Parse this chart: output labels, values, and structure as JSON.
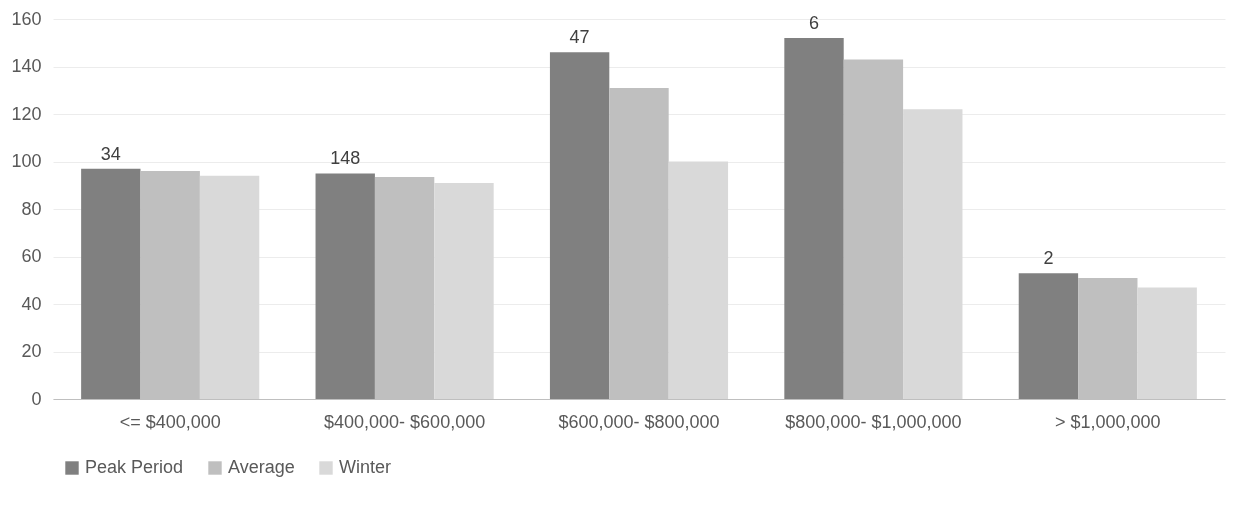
{
  "chart_data": {
    "type": "bar",
    "categories": [
      "<= $400,000",
      "$400,000- $600,000",
      "$600,000- $800,000",
      "$800,000- $1,000,000",
      "> $1,000,000"
    ],
    "series": [
      {
        "name": "Peak Period",
        "color": "#808080",
        "values": [
          97,
          95,
          146,
          152,
          53
        ]
      },
      {
        "name": "Average",
        "color": "#bfbfbf",
        "values": [
          96,
          93.5,
          131,
          143,
          51
        ]
      },
      {
        "name": "Winter",
        "color": "#d9d9d9",
        "values": [
          94,
          91,
          100,
          122,
          47
        ]
      }
    ],
    "ylim": [
      0,
      160
    ],
    "yticks": [
      0,
      20,
      40,
      60,
      80,
      100,
      120,
      140,
      160
    ],
    "grid": "y",
    "legend": "bottom",
    "annotations": [
      "34",
      "148",
      "47",
      "6",
      "2"
    ]
  }
}
